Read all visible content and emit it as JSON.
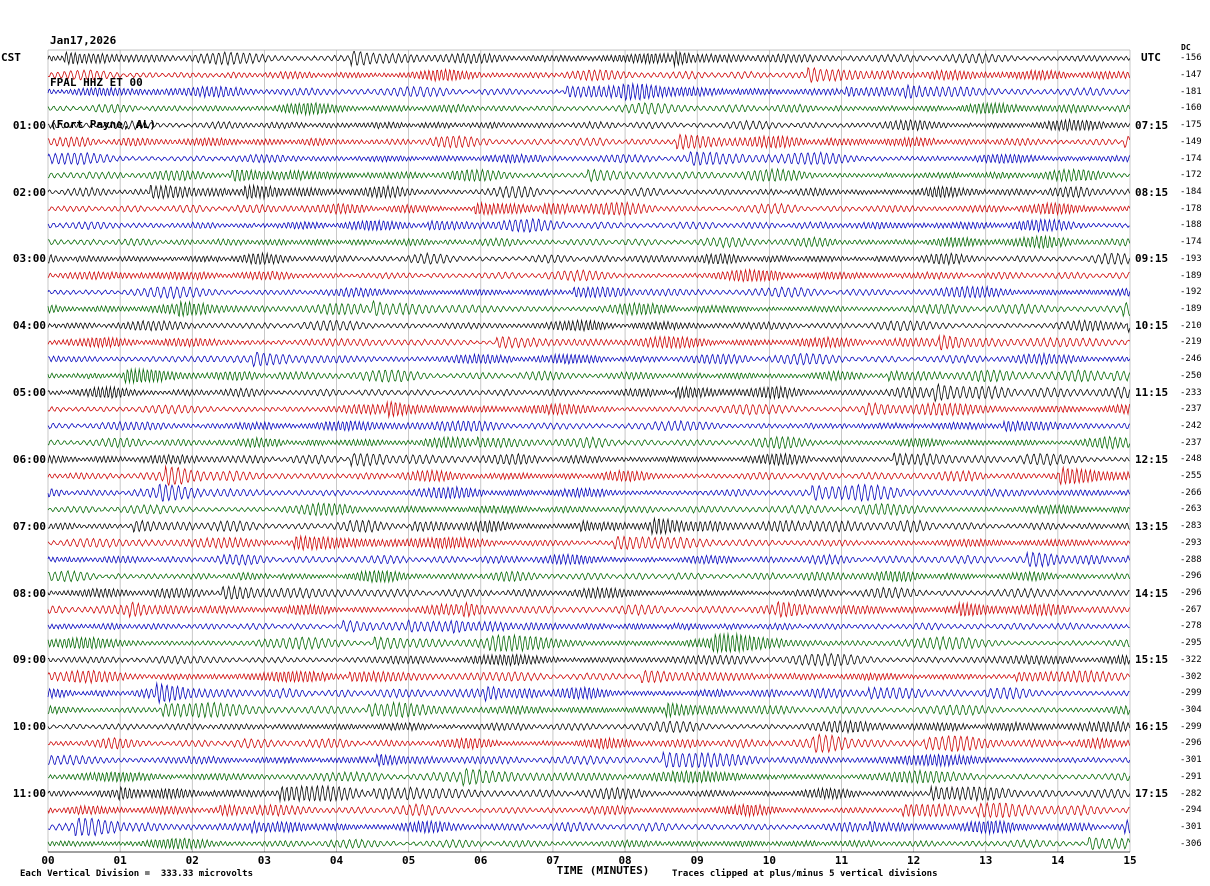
{
  "header": {
    "date": "Jan17,2026",
    "station": "FPAL HHZ ET 00",
    "location": "(Fort Payne, AL)"
  },
  "axes": {
    "left_label": "CST",
    "right_label": "UTC",
    "dc_label": "DC",
    "x_label": "TIME (MINUTES)",
    "x_ticks": [
      "00",
      "01",
      "02",
      "03",
      "04",
      "05",
      "06",
      "07",
      "08",
      "09",
      "10",
      "11",
      "12",
      "13",
      "14",
      "15"
    ]
  },
  "footer": {
    "left": "Each Vertical Division =  333.33 microvolts",
    "right": "Traces clipped at plus/minus 5 vertical divisions"
  },
  "colors": {
    "trace_cycle": [
      "#000000",
      "#cc0000",
      "#0000bb",
      "#006600"
    ],
    "grid": "#b0b0b0",
    "axis": "#000000",
    "background": "#ffffff"
  },
  "chart_data": {
    "type": "line",
    "subtype": "seismogram-helicorder",
    "title": "FPAL HHZ ET 00 (Fort Payne, AL) Jan17,2026",
    "xlabel": "TIME (MINUTES)",
    "x_range_minutes": [
      0,
      15
    ],
    "row_duration_minutes": 15,
    "rows_count": 48,
    "vertical_division_microvolts": 333.33,
    "clip_divisions": 5,
    "waveform_note": "continuous background seismic noise; amplitudes not individually labeled",
    "rows": [
      {
        "cst": "",
        "utc": "",
        "dc": "-156"
      },
      {
        "cst": "",
        "utc": "",
        "dc": "-147"
      },
      {
        "cst": "",
        "utc": "",
        "dc": "-181"
      },
      {
        "cst": "",
        "utc": "",
        "dc": "-160"
      },
      {
        "cst": "01:00",
        "utc": "07:15",
        "dc": "-175"
      },
      {
        "cst": "",
        "utc": "",
        "dc": "-149"
      },
      {
        "cst": "",
        "utc": "",
        "dc": "-174"
      },
      {
        "cst": "",
        "utc": "",
        "dc": "-172"
      },
      {
        "cst": "02:00",
        "utc": "08:15",
        "dc": "-184"
      },
      {
        "cst": "",
        "utc": "",
        "dc": "-178"
      },
      {
        "cst": "",
        "utc": "",
        "dc": "-188"
      },
      {
        "cst": "",
        "utc": "",
        "dc": "-174"
      },
      {
        "cst": "03:00",
        "utc": "09:15",
        "dc": "-193"
      },
      {
        "cst": "",
        "utc": "",
        "dc": "-189"
      },
      {
        "cst": "",
        "utc": "",
        "dc": "-192"
      },
      {
        "cst": "",
        "utc": "",
        "dc": "-189"
      },
      {
        "cst": "04:00",
        "utc": "10:15",
        "dc": "-210"
      },
      {
        "cst": "",
        "utc": "",
        "dc": "-219"
      },
      {
        "cst": "",
        "utc": "",
        "dc": "-246"
      },
      {
        "cst": "",
        "utc": "",
        "dc": "-250"
      },
      {
        "cst": "05:00",
        "utc": "11:15",
        "dc": "-233"
      },
      {
        "cst": "",
        "utc": "",
        "dc": "-237"
      },
      {
        "cst": "",
        "utc": "",
        "dc": "-242"
      },
      {
        "cst": "",
        "utc": "",
        "dc": "-237"
      },
      {
        "cst": "06:00",
        "utc": "12:15",
        "dc": "-248"
      },
      {
        "cst": "",
        "utc": "",
        "dc": "-255"
      },
      {
        "cst": "",
        "utc": "",
        "dc": "-266"
      },
      {
        "cst": "",
        "utc": "",
        "dc": "-263"
      },
      {
        "cst": "07:00",
        "utc": "13:15",
        "dc": "-283"
      },
      {
        "cst": "",
        "utc": "",
        "dc": "-293"
      },
      {
        "cst": "",
        "utc": "",
        "dc": "-288"
      },
      {
        "cst": "",
        "utc": "",
        "dc": "-296"
      },
      {
        "cst": "08:00",
        "utc": "14:15",
        "dc": "-296"
      },
      {
        "cst": "",
        "utc": "",
        "dc": "-267"
      },
      {
        "cst": "",
        "utc": "",
        "dc": "-278"
      },
      {
        "cst": "",
        "utc": "",
        "dc": "-295"
      },
      {
        "cst": "09:00",
        "utc": "15:15",
        "dc": "-322"
      },
      {
        "cst": "",
        "utc": "",
        "dc": "-302"
      },
      {
        "cst": "",
        "utc": "",
        "dc": "-299"
      },
      {
        "cst": "",
        "utc": "",
        "dc": "-304"
      },
      {
        "cst": "10:00",
        "utc": "16:15",
        "dc": "-299"
      },
      {
        "cst": "",
        "utc": "",
        "dc": "-296"
      },
      {
        "cst": "",
        "utc": "",
        "dc": "-301"
      },
      {
        "cst": "",
        "utc": "",
        "dc": "-291"
      },
      {
        "cst": "11:00",
        "utc": "17:15",
        "dc": "-282"
      },
      {
        "cst": "",
        "utc": "",
        "dc": "-294"
      },
      {
        "cst": "",
        "utc": "",
        "dc": "-301"
      },
      {
        "cst": "",
        "utc": "",
        "dc": "-306"
      }
    ]
  }
}
